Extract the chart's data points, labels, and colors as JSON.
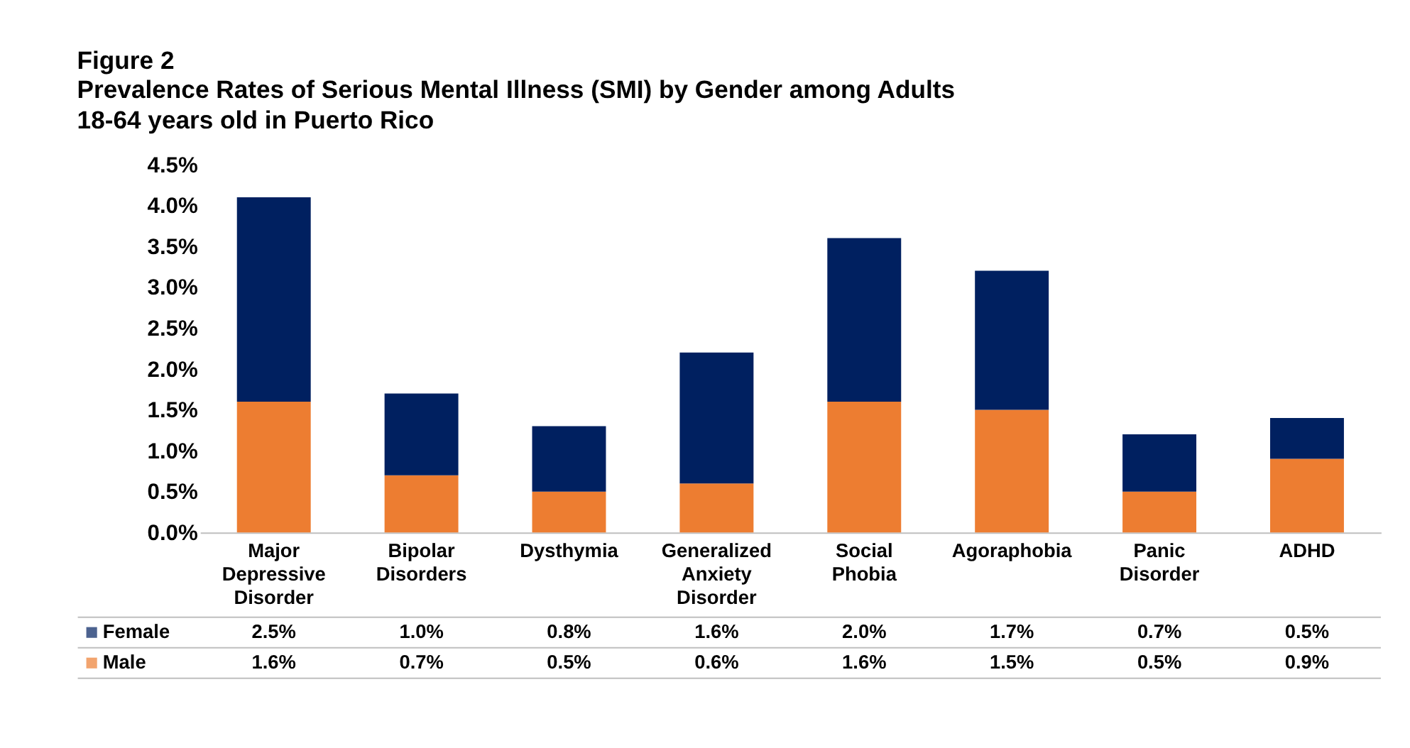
{
  "chart_data": {
    "type": "bar",
    "stacked": true,
    "title": "Figure 2",
    "subtitle": "Prevalence Rates of Serious Mental Illness (SMI) by Gender among Adults 18-64 years old in Puerto Rico",
    "categories": [
      "Major Depressive Disorder",
      "Bipolar Disorders",
      "Dysthymia",
      "Generalized Anxiety Disorder",
      "Social Phobia",
      "Agoraphobia",
      "Panic Disorder",
      "ADHD"
    ],
    "series": [
      {
        "name": "Male",
        "color": "#ed7d31",
        "values": [
          1.6,
          0.7,
          0.5,
          0.6,
          1.6,
          1.5,
          0.5,
          0.9
        ],
        "value_labels": [
          "1.6%",
          "0.7%",
          "0.5%",
          "0.6%",
          "1.6%",
          "1.5%",
          "0.5%",
          "0.9%"
        ]
      },
      {
        "name": "Female",
        "color": "#002060",
        "values": [
          2.5,
          1.0,
          0.8,
          1.6,
          2.0,
          1.7,
          0.7,
          0.5
        ],
        "value_labels": [
          "2.5%",
          "1.0%",
          "0.8%",
          "1.6%",
          "2.0%",
          "1.7%",
          "0.7%",
          "0.5%"
        ]
      }
    ],
    "ylim": [
      0,
      4.5
    ],
    "yticks": [
      {
        "value": 0,
        "label": "0.0%"
      },
      {
        "value": 0.5,
        "label": "0.5%"
      },
      {
        "value": 1,
        "label": "1.0%"
      },
      {
        "value": 1.5,
        "label": "1.5%"
      },
      {
        "value": 2,
        "label": "2.0%"
      },
      {
        "value": 2.5,
        "label": "2.5%"
      },
      {
        "value": 3,
        "label": "3.0%"
      },
      {
        "value": 3.5,
        "label": "3.5%"
      },
      {
        "value": 4,
        "label": "4.0%"
      },
      {
        "value": 4.5,
        "label": "4.5%"
      }
    ],
    "grid": false,
    "legend": "bottom left"
  }
}
